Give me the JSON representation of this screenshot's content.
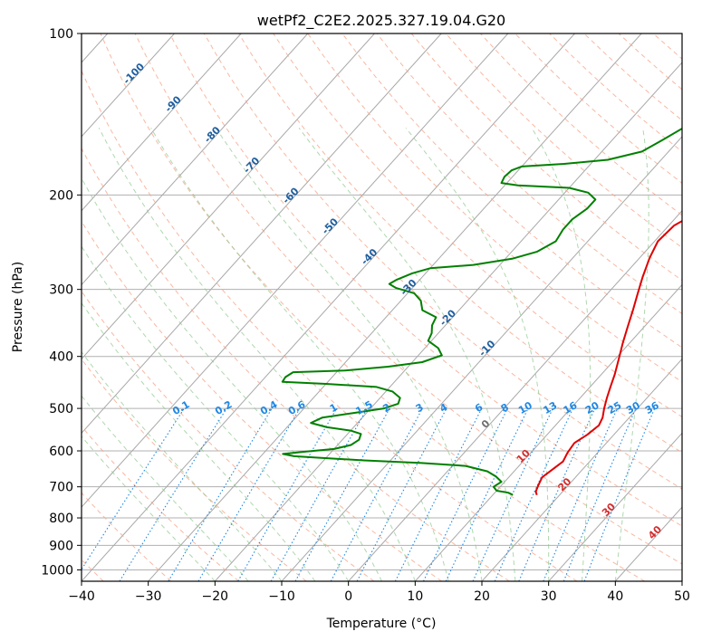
{
  "chart_data": {
    "type": "line",
    "title": "wetPf2_C2E2.2025.327.19.04.G20",
    "xlabel": "Temperature (°C)",
    "ylabel": "Pressure (hPa)",
    "xlim": [
      -40,
      50
    ],
    "ylim": [
      1050,
      100
    ],
    "x_ticks": [
      -40,
      -30,
      -20,
      -10,
      0,
      10,
      20,
      30,
      40,
      50
    ],
    "x_tick_labels": [
      "−40",
      "−30",
      "−20",
      "−10",
      "0",
      "10",
      "20",
      "30",
      "40",
      "50"
    ],
    "y_ticks": [
      100,
      200,
      300,
      400,
      500,
      600,
      700,
      800,
      900,
      1000
    ],
    "y_tick_labels": [
      "100",
      "200",
      "300",
      "400",
      "500",
      "600",
      "700",
      "800",
      "900",
      "1000"
    ],
    "series": [
      {
        "name": "temperature",
        "color": "#e00000",
        "points": [
          [
            17.0,
            100
          ],
          [
            16.8,
            103
          ],
          [
            15.5,
            110
          ],
          [
            13.0,
            118
          ],
          [
            11.5,
            126
          ],
          [
            10.3,
            135
          ],
          [
            9.8,
            145
          ],
          [
            10.0,
            158
          ],
          [
            10.2,
            172
          ],
          [
            9.6,
            186
          ],
          [
            6.5,
            197
          ],
          [
            3.0,
            212
          ],
          [
            0.8,
            228
          ],
          [
            0.5,
            244
          ],
          [
            1.5,
            262
          ],
          [
            3.0,
            284
          ],
          [
            4.5,
            305
          ],
          [
            6.0,
            327
          ],
          [
            7.5,
            352
          ],
          [
            9.0,
            378
          ],
          [
            10.5,
            404
          ],
          [
            12.0,
            432
          ],
          [
            13.0,
            455
          ],
          [
            14.0,
            478
          ],
          [
            15.0,
            500
          ],
          [
            16.0,
            520
          ],
          [
            16.5,
            538
          ],
          [
            16.0,
            560
          ],
          [
            15.2,
            580
          ],
          [
            15.5,
            605
          ],
          [
            16.0,
            628
          ],
          [
            15.5,
            650
          ],
          [
            15.0,
            672
          ],
          [
            15.5,
            695
          ],
          [
            16.0,
            715
          ],
          [
            16.6,
            725
          ]
        ]
      },
      {
        "name": "dewpoint",
        "color": "#008000",
        "points": [
          [
            0.5,
            100
          ],
          [
            -0.5,
            108
          ],
          [
            -2.0,
            117
          ],
          [
            -5.0,
            125
          ],
          [
            -9.5,
            133
          ],
          [
            -10.5,
            140
          ],
          [
            -11.0,
            150
          ],
          [
            -12.5,
            158
          ],
          [
            -14.0,
            166
          ],
          [
            -18.0,
            172
          ],
          [
            -24.0,
            175
          ],
          [
            -30.0,
            177
          ],
          [
            -31.0,
            180
          ],
          [
            -31.2,
            185
          ],
          [
            -30.8,
            190
          ],
          [
            -28.0,
            192
          ],
          [
            -20.0,
            194
          ],
          [
            -16.5,
            198
          ],
          [
            -14.5,
            204
          ],
          [
            -14.5,
            212
          ],
          [
            -15.3,
            222
          ],
          [
            -15.3,
            232
          ],
          [
            -14.8,
            244
          ],
          [
            -16.2,
            255
          ],
          [
            -19.0,
            263
          ],
          [
            -24.0,
            270
          ],
          [
            -30.0,
            274
          ],
          [
            -32.0,
            280
          ],
          [
            -33.5,
            288
          ],
          [
            -34.0,
            293
          ],
          [
            -32.5,
            298
          ],
          [
            -29.0,
            305
          ],
          [
            -27.0,
            315
          ],
          [
            -25.5,
            328
          ],
          [
            -22.5,
            338
          ],
          [
            -22.0,
            350
          ],
          [
            -21.0,
            362
          ],
          [
            -20.5,
            374
          ],
          [
            -18.0,
            386
          ],
          [
            -16.5,
            398
          ],
          [
            -18.5,
            410
          ],
          [
            -23.0,
            418
          ],
          [
            -29.0,
            425
          ],
          [
            -36.5,
            428
          ],
          [
            -37.0,
            437
          ],
          [
            -36.8,
            446
          ],
          [
            -30.0,
            450
          ],
          [
            -22.0,
            456
          ],
          [
            -19.0,
            465
          ],
          [
            -17.0,
            478
          ],
          [
            -16.5,
            490
          ],
          [
            -18.0,
            500
          ],
          [
            -22.0,
            510
          ],
          [
            -26.0,
            520
          ],
          [
            -27.0,
            532
          ],
          [
            -24.0,
            542
          ],
          [
            -20.0,
            550
          ],
          [
            -18.0,
            558
          ],
          [
            -17.5,
            572
          ],
          [
            -18.0,
            585
          ],
          [
            -20.0,
            595
          ],
          [
            -24.0,
            602
          ],
          [
            -27.0,
            608
          ],
          [
            -25.0,
            614
          ],
          [
            -21.0,
            618
          ],
          [
            -14.0,
            625
          ],
          [
            -5.0,
            632
          ],
          [
            2.0,
            640
          ],
          [
            6.0,
            655
          ],
          [
            8.0,
            670
          ],
          [
            9.5,
            685
          ],
          [
            9.0,
            700
          ],
          [
            10.0,
            712
          ],
          [
            12.0,
            718
          ],
          [
            13.0,
            725
          ]
        ]
      }
    ],
    "mixing_ratio_labels": [
      "0.1",
      "0.2",
      "0.4",
      "0.6",
      "1",
      "1.5",
      "2",
      "3",
      "4",
      "6",
      "8",
      "10",
      "13",
      "16",
      "20",
      "25",
      "30",
      "36"
    ],
    "dry_adiabat_labels": [
      "-100",
      "-90",
      "-80",
      "-70",
      "-60",
      "-50",
      "-40",
      "-30",
      "-20",
      "-10"
    ],
    "moist_adiabat_labels": [
      "0",
      "10",
      "20",
      "30",
      "40"
    ]
  }
}
